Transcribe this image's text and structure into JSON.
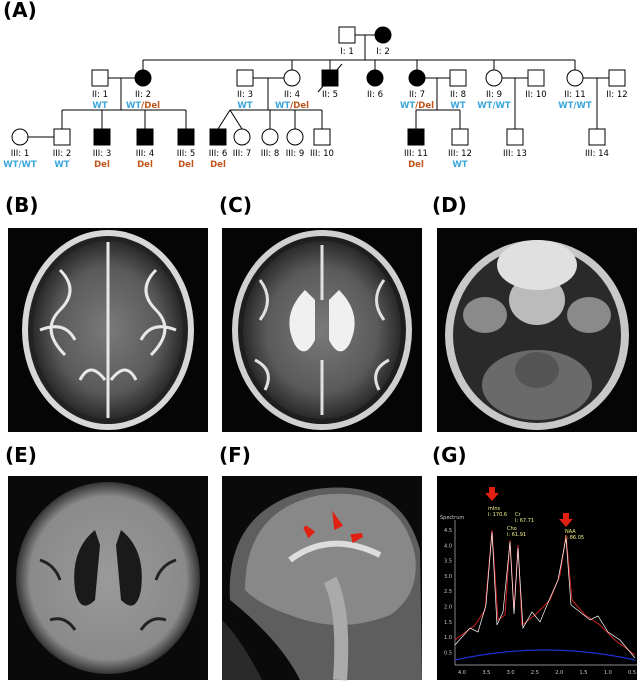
{
  "panel_labels": [
    "(A)",
    "(B)",
    "(C)",
    "(D)",
    "(E)",
    "(F)",
    "(G)"
  ],
  "pedigree": {
    "nodes": [
      {
        "label": "I: 1"
      },
      {
        "label": "I: 2"
      },
      {
        "label": "II: 1",
        "genotype": [
          "WT"
        ]
      },
      {
        "label": "II: 2",
        "genotype": [
          "WT",
          "/Del"
        ]
      },
      {
        "label": "II: 3",
        "genotype": [
          "WT"
        ]
      },
      {
        "label": "II: 4",
        "genotype": [
          "WT",
          "/Del"
        ]
      },
      {
        "label": "II: 5"
      },
      {
        "label": "II: 6"
      },
      {
        "label": "II: 7",
        "genotype": [
          "WT",
          "/Del"
        ]
      },
      {
        "label": "II: 8",
        "genotype": [
          "WT"
        ]
      },
      {
        "label": "II: 9",
        "genotype": [
          "WT/WT"
        ]
      },
      {
        "label": "II: 10"
      },
      {
        "label": "II: 11",
        "genotype": [
          "WT/WT"
        ]
      },
      {
        "label": "II: 12"
      },
      {
        "label": "III: 1",
        "genotype": [
          "WT/WT"
        ]
      },
      {
        "label": "III: 2",
        "genotype": [
          "WT"
        ]
      },
      {
        "label": "III: 3",
        "genotype": [
          "Del"
        ]
      },
      {
        "label": "III: 4",
        "genotype": [
          "Del"
        ]
      },
      {
        "label": "III: 5",
        "genotype": [
          "Del"
        ]
      },
      {
        "label": "III: 6",
        "genotype": [
          "Del"
        ]
      },
      {
        "label": "III: 7"
      },
      {
        "label": "III: 8"
      },
      {
        "label": "III: 9"
      },
      {
        "label": "III: 10"
      },
      {
        "label": "III: 11",
        "genotype": [
          "Del"
        ]
      },
      {
        "label": "III: 12",
        "genotype": [
          "WT"
        ]
      },
      {
        "label": "III: 13"
      },
      {
        "label": "III: 14"
      }
    ]
  },
  "spectrum": {
    "title": "Spectrum",
    "y_labels": [
      "4.5",
      "4.0",
      "3.5",
      "3.0",
      "2.5",
      "2.0",
      "1.5",
      "1.0",
      "0.5"
    ],
    "x_labels": [
      "4.0",
      "3.5",
      "3.0",
      "2.5",
      "2.0",
      "1.5",
      "1.0",
      "0.5"
    ],
    "peaks": [
      {
        "name": "mIns",
        "value": "I: 170.6"
      },
      {
        "name": "Cho",
        "value": "I: 61.91"
      },
      {
        "name": "Cr",
        "value": "I: 67.71"
      },
      {
        "name": "NAA",
        "value": "I: 86.05"
      }
    ]
  }
}
